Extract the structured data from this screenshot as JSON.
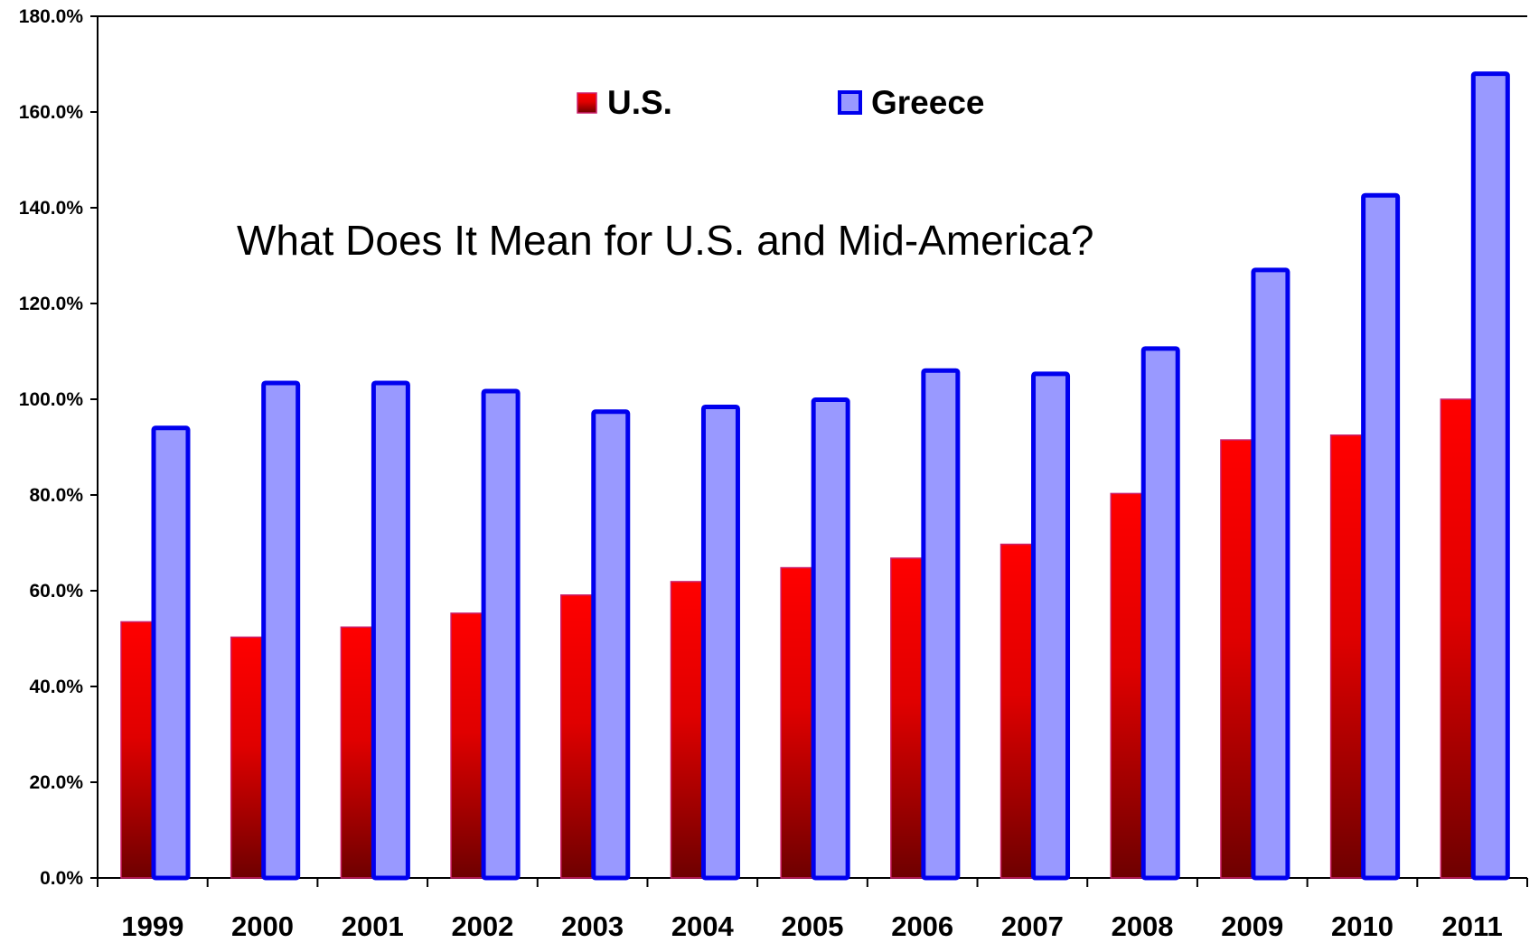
{
  "chart_data": {
    "type": "bar",
    "title": "",
    "xlabel": "",
    "ylabel": "",
    "annotation": "What Does It Mean for U.S. and Mid-America?",
    "categories": [
      "1999",
      "2000",
      "2001",
      "2002",
      "2003",
      "2004",
      "2005",
      "2006",
      "2007",
      "2008",
      "2009",
      "2010",
      "2011"
    ],
    "series": [
      {
        "name": "U.S.",
        "color": "#ff0000",
        "values": [
          53.5,
          50.3,
          52.4,
          55.3,
          59.1,
          61.9,
          64.8,
          66.8,
          69.7,
          80.3,
          91.5,
          92.5,
          100.0
        ]
      },
      {
        "name": "Greece",
        "color": "#9999ff",
        "values": [
          94.0,
          103.4,
          103.4,
          101.7,
          97.4,
          98.4,
          99.9,
          106.0,
          105.3,
          110.6,
          127.0,
          142.6,
          168.0
        ]
      }
    ],
    "ylim": [
      0,
      180
    ],
    "yticks": [
      "0.0%",
      "20.0%",
      "40.0%",
      "60.0%",
      "80.0%",
      "100.0%",
      "120.0%",
      "140.0%",
      "160.0%",
      "180.0%"
    ],
    "grid": false,
    "legend": "top-center"
  }
}
